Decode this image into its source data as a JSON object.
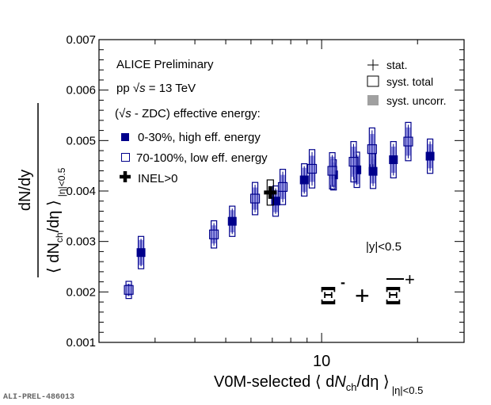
{
  "chart_data": {
    "type": "scatter",
    "title": "",
    "xlabel": "V0M-selected ⟨ dN_ch/dη ⟩_|η|<0.5",
    "xlabel_parts": {
      "pre": "V0M-selected ⟨ d",
      "N": "N",
      "ch": "ch",
      "mid": "/dη ⟩",
      "sub": "|η|<0.5"
    },
    "ylabel": "dN/dy / ⟨ dN_ch/dη ⟩_|η|<0.5",
    "ylabel_parts": {
      "num": "dN/dy",
      "den_pre": "⟨ dN",
      "den_ch": "ch",
      "den_mid": "/dη ⟩",
      "den_sub": "|η|<0.5"
    },
    "xscale": "log",
    "xlim": [
      2.0,
      28.0
    ],
    "ylim": [
      0.001,
      0.007
    ],
    "x_tick_labels": [
      {
        "value": 10,
        "label": "10"
      }
    ],
    "x_minor_ticks": [
      3,
      4,
      5,
      6,
      7,
      8,
      9,
      20
    ],
    "y_tick_labels": [
      {
        "value": 0.001,
        "label": "0.001"
      },
      {
        "value": 0.002,
        "label": "0.002"
      },
      {
        "value": 0.003,
        "label": "0.003"
      },
      {
        "value": 0.004,
        "label": "0.004"
      },
      {
        "value": 0.005,
        "label": "0.005"
      },
      {
        "value": 0.006,
        "label": "0.006"
      },
      {
        "value": 0.007,
        "label": "0.007"
      }
    ],
    "grid": false,
    "series": [
      {
        "name": "0-30%, high eff. energy",
        "marker": "filled-square",
        "color": "#00008b",
        "x": [
          2.71,
          5.24,
          7.17,
          8.82,
          10.9,
          12.9,
          14.5,
          16.8,
          21.9
        ],
        "y": [
          0.00278,
          0.0034,
          0.0038,
          0.00422,
          0.00432,
          0.00442,
          0.00439,
          0.00462,
          0.00469
        ],
        "stat": [
          5e-05,
          5e-05,
          5e-05,
          5e-05,
          5e-05,
          5e-05,
          5e-05,
          5e-05,
          5e-05
        ],
        "syst": [
          0.00032,
          0.0003,
          0.0003,
          0.00032,
          0.0003,
          0.00035,
          0.00034,
          0.00036,
          0.00034
        ],
        "syst_uncorr": [
          0.00025,
          0.00022,
          0.00022,
          0.00024,
          0.00024,
          0.00028,
          0.00024,
          0.00026,
          0.00024
        ]
      },
      {
        "name": "70-100%, low eff. energy",
        "marker": "open-square",
        "color": "#00008b",
        "x": [
          2.48,
          4.59,
          6.18,
          7.55,
          9.33,
          10.8,
          12.6,
          14.4,
          18.7
        ],
        "y": [
          0.00204,
          0.00314,
          0.00385,
          0.00408,
          0.00444,
          0.0044,
          0.00458,
          0.00483,
          0.00498
        ],
        "stat": [
          5e-05,
          5e-05,
          5e-05,
          5e-05,
          5e-05,
          5e-05,
          5e-05,
          5e-05,
          5e-05
        ],
        "syst": [
          0.00017,
          0.00027,
          0.00032,
          0.00035,
          0.00038,
          0.00036,
          0.0004,
          0.00042,
          0.00038
        ],
        "syst_uncorr": [
          0.00012,
          0.00018,
          0.00022,
          0.00024,
          0.00026,
          0.00028,
          0.0003,
          0.0003,
          0.00028
        ]
      },
      {
        "name": "INEL>0",
        "marker": "cross",
        "color": "#000000",
        "x": [
          6.9
        ],
        "y": [
          0.00397
        ],
        "stat": [
          5e-05
        ],
        "syst": [
          0.00025
        ],
        "syst_uncorr": [
          0
        ]
      }
    ],
    "annotations": {
      "experiment": "ALICE Preliminary",
      "system_pre": "pp ",
      "system_s": "s",
      "system_post": " = 13 TeV",
      "selection_pre": "(",
      "selection_s": "s",
      "selection_post": " - ZDC) effective energy:",
      "rapidity": "|y|<0.5",
      "particle_xi": "Ξ",
      "particle_xi_charge": "-",
      "particle_plus": "+",
      "particle_antixi": "Ξ",
      "particle_antixi_charge": "+"
    },
    "legend": {
      "placement": "top-left",
      "entries": [
        {
          "label": "0-30%, high eff. energy",
          "marker": "filled-square"
        },
        {
          "label": "70-100%, low eff. energy",
          "marker": "open-square"
        },
        {
          "label": "INEL>0",
          "marker": "cross"
        }
      ]
    },
    "uncertainty_legend": {
      "placement": "top-right",
      "entries": [
        {
          "label": "stat.",
          "marker": "plus"
        },
        {
          "label": "syst. total",
          "marker": "open-box"
        },
        {
          "label": "syst. uncorr.",
          "marker": "gray-box"
        }
      ]
    },
    "colors": {
      "series_blue": "#00008b",
      "uncorr_fill": "#8080dd",
      "syst_gray": "#a0a0a0"
    }
  },
  "footer": {
    "id_label": "ALI-PREL-486013"
  }
}
